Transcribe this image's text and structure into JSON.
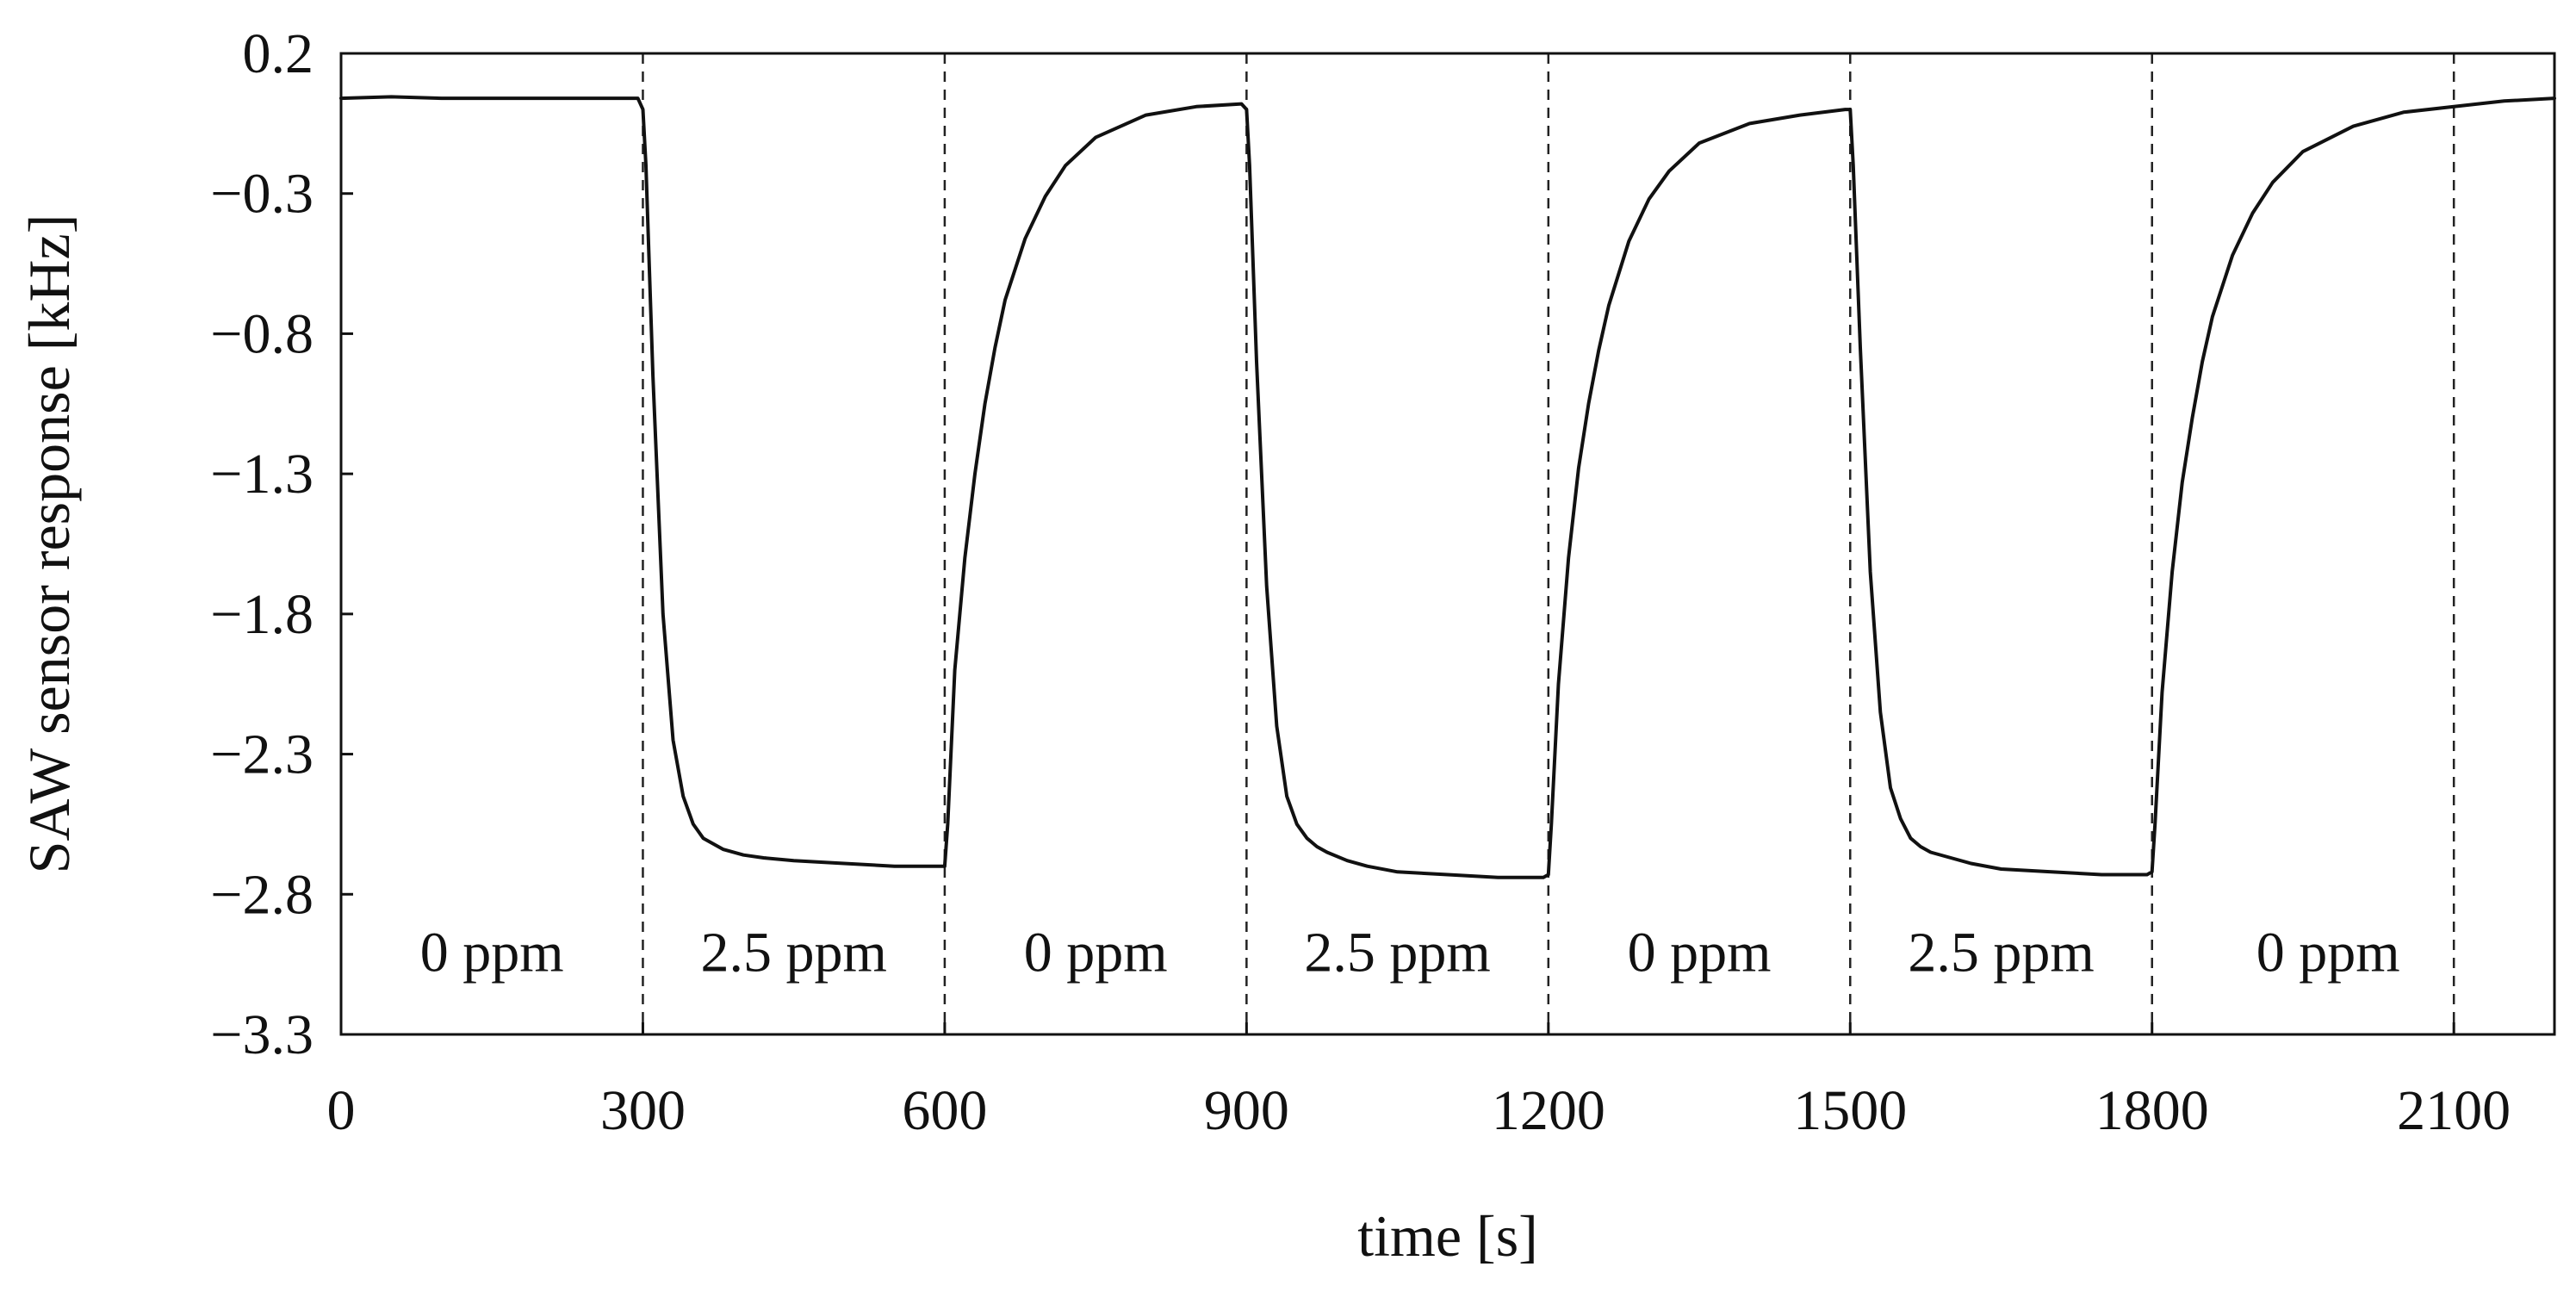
{
  "chart_data": {
    "type": "line",
    "title": "",
    "xlabel": "time [s]",
    "ylabel": "SAW sensor response [kHz]",
    "xlim": [
      0,
      2200
    ],
    "ylim": [
      -3.3,
      0.2
    ],
    "xticks": [
      0,
      300,
      600,
      900,
      1200,
      1500,
      1800,
      2100
    ],
    "xtick_labels": [
      "0",
      "300",
      "600",
      "900",
      "1200",
      "1500",
      "1800",
      "2100"
    ],
    "yticks": [
      0.2,
      -0.3,
      -0.8,
      -1.3,
      -1.8,
      -2.3,
      -2.8,
      -3.3
    ],
    "ytick_labels": [
      "0.2",
      "−0.3",
      "−0.8",
      "−1.3",
      "−1.8",
      "−2.3",
      "−2.8",
      "−3.3"
    ],
    "grid": false,
    "legend": "none",
    "switch_times": [
      300,
      600,
      900,
      1200,
      1500,
      1800,
      2100
    ],
    "regions": [
      {
        "label": "0 ppm",
        "x_center": 150
      },
      {
        "label": "2.5 ppm",
        "x_center": 450
      },
      {
        "label": "0 ppm",
        "x_center": 750
      },
      {
        "label": "2.5 ppm",
        "x_center": 1050
      },
      {
        "label": "0 ppm",
        "x_center": 1350
      },
      {
        "label": "2.5 ppm",
        "x_center": 1650
      },
      {
        "label": "0 ppm",
        "x_center": 1975
      }
    ],
    "region_label_y": -3.0,
    "series": [
      {
        "name": "SAW sensor response",
        "x": [
          0,
          50,
          100,
          150,
          200,
          250,
          295,
          300,
          303,
          310,
          320,
          330,
          340,
          350,
          360,
          370,
          380,
          400,
          420,
          450,
          500,
          550,
          595,
          600,
          603,
          610,
          620,
          630,
          640,
          650,
          660,
          680,
          700,
          720,
          750,
          800,
          850,
          895,
          900,
          903,
          910,
          920,
          930,
          940,
          950,
          960,
          970,
          980,
          1000,
          1020,
          1050,
          1100,
          1150,
          1195,
          1200,
          1203,
          1210,
          1220,
          1230,
          1240,
          1250,
          1260,
          1280,
          1300,
          1320,
          1350,
          1400,
          1450,
          1495,
          1500,
          1503,
          1510,
          1520,
          1530,
          1540,
          1550,
          1560,
          1570,
          1580,
          1600,
          1620,
          1650,
          1700,
          1750,
          1795,
          1800,
          1803,
          1810,
          1820,
          1830,
          1840,
          1850,
          1860,
          1880,
          1900,
          1920,
          1950,
          2000,
          2050,
          2100,
          2150,
          2200
        ],
        "y": [
          0.04,
          0.045,
          0.04,
          0.04,
          0.04,
          0.04,
          0.04,
          0.0,
          -0.2,
          -0.95,
          -1.8,
          -2.25,
          -2.45,
          -2.55,
          -2.6,
          -2.62,
          -2.64,
          -2.66,
          -2.67,
          -2.68,
          -2.69,
          -2.7,
          -2.7,
          -2.7,
          -2.55,
          -2.0,
          -1.6,
          -1.3,
          -1.05,
          -0.85,
          -0.68,
          -0.46,
          -0.31,
          -0.2,
          -0.1,
          -0.02,
          0.01,
          0.02,
          0.0,
          -0.2,
          -0.9,
          -1.7,
          -2.2,
          -2.45,
          -2.55,
          -2.6,
          -2.63,
          -2.65,
          -2.68,
          -2.7,
          -2.72,
          -2.73,
          -2.74,
          -2.74,
          -2.73,
          -2.55,
          -2.05,
          -1.6,
          -1.28,
          -1.05,
          -0.86,
          -0.7,
          -0.47,
          -0.32,
          -0.22,
          -0.12,
          -0.05,
          -0.02,
          0.0,
          0.0,
          -0.2,
          -0.85,
          -1.65,
          -2.15,
          -2.42,
          -2.53,
          -2.6,
          -2.63,
          -2.65,
          -2.67,
          -2.69,
          -2.71,
          -2.72,
          -2.73,
          -2.73,
          -2.72,
          -2.55,
          -2.08,
          -1.65,
          -1.33,
          -1.1,
          -0.9,
          -0.74,
          -0.52,
          -0.37,
          -0.26,
          -0.15,
          -0.06,
          -0.01,
          0.01,
          0.03,
          0.04
        ]
      }
    ]
  }
}
